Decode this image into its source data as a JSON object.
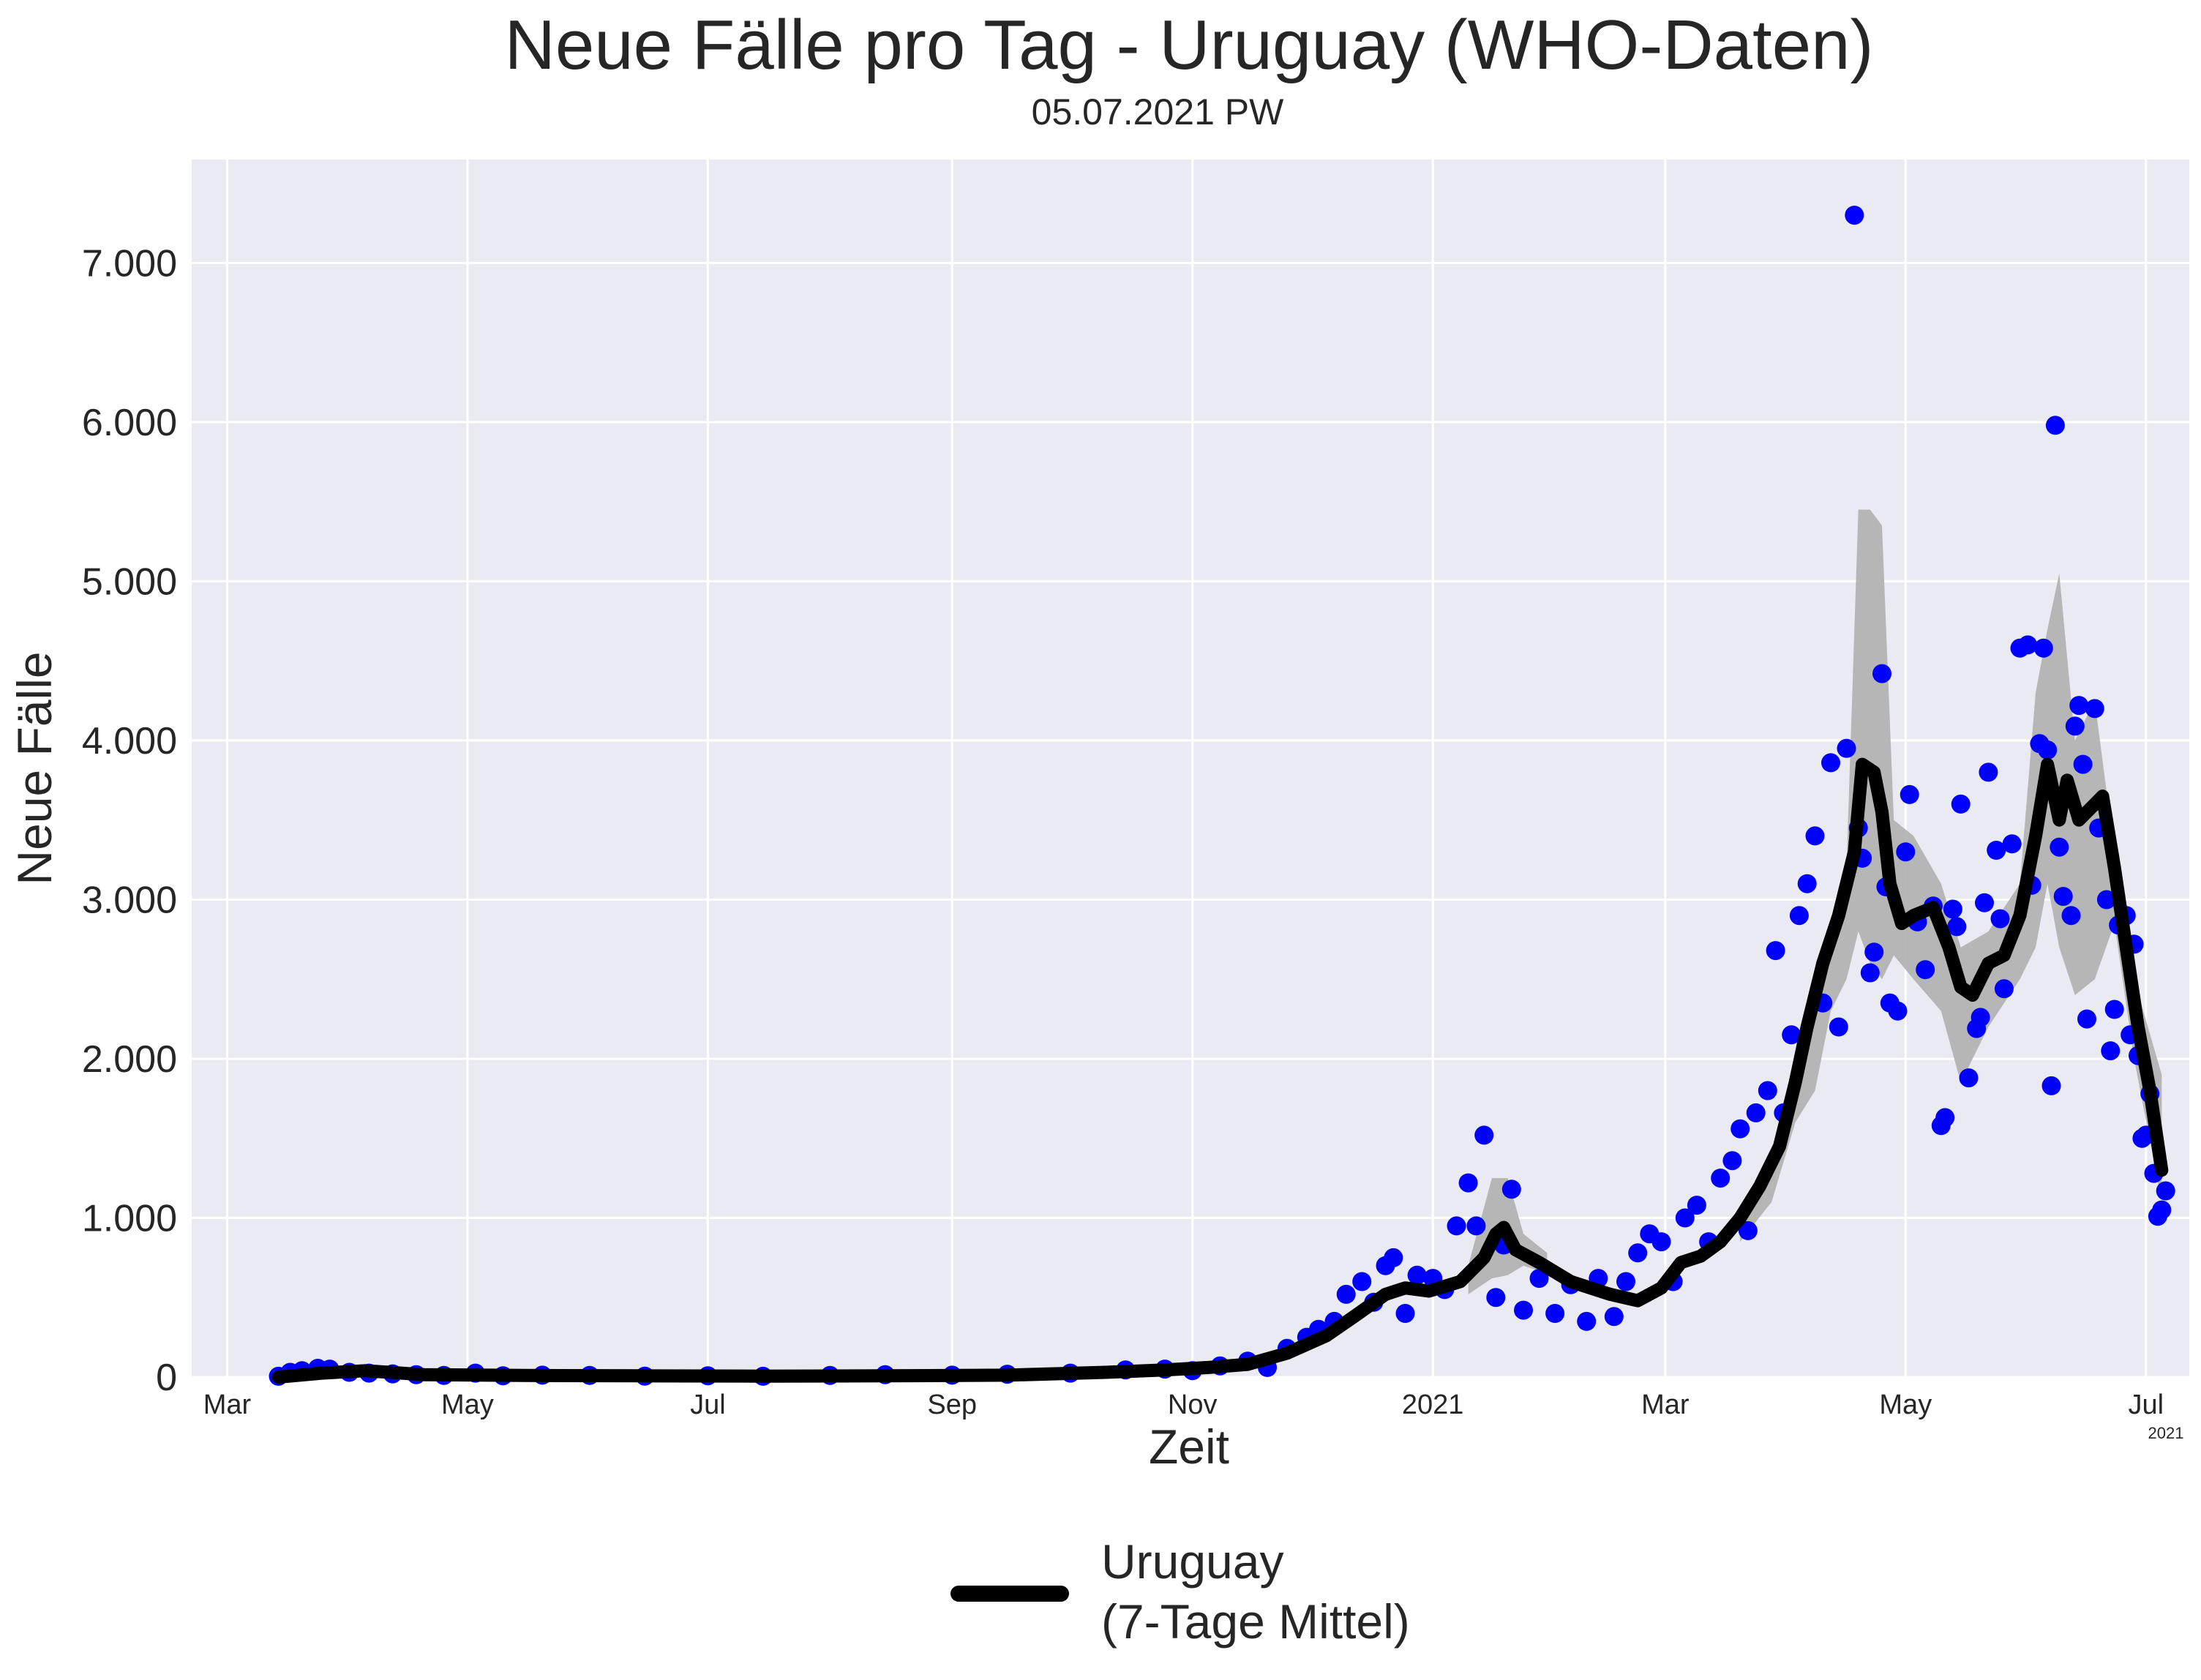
{
  "chart_data": {
    "type": "scatter",
    "title": "Neue Fälle pro Tag - Uruguay (WHO-Daten)",
    "subtitle": "05.07.2021 PW",
    "xlabel": "Zeit",
    "ylabel": "Neue Fälle",
    "x_offset_label": "2021",
    "xlim": [
      "2020-02-21",
      "2021-07-12"
    ],
    "ylim": [
      0,
      7650
    ],
    "grid": true,
    "legend_placement": "bottom-center",
    "y_ticks": [
      {
        "value": 0,
        "label": "0"
      },
      {
        "value": 1000,
        "label": "1.000"
      },
      {
        "value": 2000,
        "label": "2.000"
      },
      {
        "value": 3000,
        "label": "3.000"
      },
      {
        "value": 4000,
        "label": "4.000"
      },
      {
        "value": 5000,
        "label": "5.000"
      },
      {
        "value": 6000,
        "label": "6.000"
      },
      {
        "value": 7000,
        "label": "7.000"
      }
    ],
    "x_ticks": [
      {
        "date": "2020-03-01",
        "label": "Mar"
      },
      {
        "date": "2020-05-01",
        "label": "May"
      },
      {
        "date": "2020-07-01",
        "label": "Jul"
      },
      {
        "date": "2020-09-01",
        "label": "Sep"
      },
      {
        "date": "2020-11-01",
        "label": "Nov"
      },
      {
        "date": "2021-01-01",
        "label": "2021"
      },
      {
        "date": "2021-03-01",
        "label": "Mar"
      },
      {
        "date": "2021-05-01",
        "label": "May"
      },
      {
        "date": "2021-07-01",
        "label": "Jul"
      }
    ],
    "series": [
      {
        "name": "Uruguay\n(7-Tage Mittel)",
        "type": "line",
        "color": "#000000",
        "points": [
          [
            "2020-03-14",
            0
          ],
          [
            "2020-03-25",
            25
          ],
          [
            "2020-04-05",
            40
          ],
          [
            "2020-04-20",
            15
          ],
          [
            "2020-05-15",
            10
          ],
          [
            "2020-06-15",
            8
          ],
          [
            "2020-07-15",
            6
          ],
          [
            "2020-08-15",
            8
          ],
          [
            "2020-09-15",
            12
          ],
          [
            "2020-10-10",
            30
          ],
          [
            "2020-10-25",
            45
          ],
          [
            "2020-11-05",
            60
          ],
          [
            "2020-11-15",
            80
          ],
          [
            "2020-11-25",
            150
          ],
          [
            "2020-12-05",
            260
          ],
          [
            "2020-12-12",
            380
          ],
          [
            "2020-12-20",
            520
          ],
          [
            "2020-12-25",
            560
          ],
          [
            "2020-12-31",
            540
          ],
          [
            "2021-01-08",
            600
          ],
          [
            "2021-01-14",
            750
          ],
          [
            "2021-01-17",
            900
          ],
          [
            "2021-01-19",
            940
          ],
          [
            "2021-01-22",
            800
          ],
          [
            "2021-01-28",
            720
          ],
          [
            "2021-02-05",
            600
          ],
          [
            "2021-02-15",
            520
          ],
          [
            "2021-02-22",
            480
          ],
          [
            "2021-02-28",
            560
          ],
          [
            "2021-03-05",
            720
          ],
          [
            "2021-03-10",
            760
          ],
          [
            "2021-03-15",
            850
          ],
          [
            "2021-03-20",
            1000
          ],
          [
            "2021-03-25",
            1200
          ],
          [
            "2021-03-30",
            1450
          ],
          [
            "2021-04-03",
            1850
          ],
          [
            "2021-04-06",
            2200
          ],
          [
            "2021-04-10",
            2600
          ],
          [
            "2021-04-14",
            2900
          ],
          [
            "2021-04-18",
            3300
          ],
          [
            "2021-04-20",
            3850
          ],
          [
            "2021-04-23",
            3800
          ],
          [
            "2021-04-25",
            3550
          ],
          [
            "2021-04-27",
            3100
          ],
          [
            "2021-04-30",
            2850
          ],
          [
            "2021-05-03",
            2900
          ],
          [
            "2021-05-08",
            2950
          ],
          [
            "2021-05-12",
            2700
          ],
          [
            "2021-05-15",
            2450
          ],
          [
            "2021-05-18",
            2400
          ],
          [
            "2021-05-22",
            2600
          ],
          [
            "2021-05-26",
            2650
          ],
          [
            "2021-05-30",
            2900
          ],
          [
            "2021-06-03",
            3400
          ],
          [
            "2021-06-06",
            3850
          ],
          [
            "2021-06-09",
            3500
          ],
          [
            "2021-06-11",
            3750
          ],
          [
            "2021-06-14",
            3500
          ],
          [
            "2021-06-18",
            3600
          ],
          [
            "2021-06-20",
            3650
          ],
          [
            "2021-06-23",
            3200
          ],
          [
            "2021-06-26",
            2700
          ],
          [
            "2021-06-29",
            2200
          ],
          [
            "2021-07-02",
            1800
          ],
          [
            "2021-07-05",
            1300
          ]
        ]
      },
      {
        "name": "",
        "type": "band",
        "color": "#b3b3b3",
        "upper": [
          [
            "2021-03-20",
            1050
          ],
          [
            "2021-03-28",
            1350
          ],
          [
            "2021-04-03",
            2000
          ],
          [
            "2021-04-08",
            2400
          ],
          [
            "2021-04-12",
            2800
          ],
          [
            "2021-04-16",
            3200
          ],
          [
            "2021-04-19",
            5450
          ],
          [
            "2021-04-22",
            5450
          ],
          [
            "2021-04-25",
            5350
          ],
          [
            "2021-04-28",
            3500
          ],
          [
            "2021-05-03",
            3400
          ],
          [
            "2021-05-10",
            3100
          ],
          [
            "2021-05-15",
            2700
          ],
          [
            "2021-05-22",
            2800
          ],
          [
            "2021-05-30",
            3100
          ],
          [
            "2021-06-03",
            4300
          ],
          [
            "2021-06-06",
            4700
          ],
          [
            "2021-06-09",
            5050
          ],
          [
            "2021-06-13",
            4000
          ],
          [
            "2021-06-18",
            4250
          ],
          [
            "2021-06-23",
            3300
          ],
          [
            "2021-06-28",
            2500
          ],
          [
            "2021-07-05",
            1900
          ]
        ],
        "lower": [
          [
            "2021-07-05",
            1100
          ],
          [
            "2021-06-28",
            2000
          ],
          [
            "2021-06-23",
            2850
          ],
          [
            "2021-06-18",
            2500
          ],
          [
            "2021-06-13",
            2400
          ],
          [
            "2021-06-09",
            2700
          ],
          [
            "2021-06-06",
            3100
          ],
          [
            "2021-06-03",
            2700
          ],
          [
            "2021-05-30",
            2500
          ],
          [
            "2021-05-22",
            2200
          ],
          [
            "2021-05-15",
            1850
          ],
          [
            "2021-05-10",
            2300
          ],
          [
            "2021-05-03",
            2500
          ],
          [
            "2021-04-28",
            2650
          ],
          [
            "2021-04-25",
            2500
          ],
          [
            "2021-04-22",
            2600
          ],
          [
            "2021-04-19",
            2800
          ],
          [
            "2021-04-16",
            2500
          ],
          [
            "2021-04-12",
            2300
          ],
          [
            "2021-04-08",
            1800
          ],
          [
            "2021-04-03",
            1600
          ],
          [
            "2021-03-28",
            1100
          ],
          [
            "2021-03-20",
            850
          ]
        ]
      },
      {
        "name": "",
        "type": "band",
        "color": "#b3b3b3",
        "upper": [
          [
            "2021-01-10",
            700
          ],
          [
            "2021-01-16",
            1250
          ],
          [
            "2021-01-20",
            1250
          ],
          [
            "2021-01-24",
            900
          ],
          [
            "2021-01-30",
            780
          ]
        ],
        "lower": [
          [
            "2021-01-30",
            650
          ],
          [
            "2021-01-24",
            700
          ],
          [
            "2021-01-20",
            640
          ],
          [
            "2021-01-16",
            620
          ],
          [
            "2021-01-10",
            520
          ]
        ]
      },
      {
        "name": "",
        "type": "scatter",
        "color": "#0000ff",
        "points": [
          [
            "2020-03-14",
            5
          ],
          [
            "2020-03-17",
            30
          ],
          [
            "2020-03-20",
            40
          ],
          [
            "2020-03-24",
            55
          ],
          [
            "2020-03-27",
            50
          ],
          [
            "2020-04-01",
            30
          ],
          [
            "2020-04-06",
            25
          ],
          [
            "2020-04-12",
            20
          ],
          [
            "2020-04-18",
            15
          ],
          [
            "2020-04-25",
            10
          ],
          [
            "2020-05-03",
            25
          ],
          [
            "2020-05-10",
            8
          ],
          [
            "2020-05-20",
            12
          ],
          [
            "2020-06-01",
            10
          ],
          [
            "2020-06-15",
            6
          ],
          [
            "2020-07-01",
            8
          ],
          [
            "2020-07-15",
            5
          ],
          [
            "2020-08-01",
            10
          ],
          [
            "2020-08-15",
            15
          ],
          [
            "2020-09-01",
            12
          ],
          [
            "2020-09-15",
            18
          ],
          [
            "2020-10-01",
            25
          ],
          [
            "2020-10-15",
            45
          ],
          [
            "2020-10-25",
            50
          ],
          [
            "2020-11-01",
            40
          ],
          [
            "2020-11-08",
            70
          ],
          [
            "2020-11-15",
            100
          ],
          [
            "2020-11-20",
            60
          ],
          [
            "2020-11-25",
            180
          ],
          [
            "2020-11-30",
            250
          ],
          [
            "2020-12-03",
            300
          ],
          [
            "2020-12-07",
            350
          ],
          [
            "2020-12-10",
            520
          ],
          [
            "2020-12-14",
            600
          ],
          [
            "2020-12-17",
            470
          ],
          [
            "2020-12-20",
            700
          ],
          [
            "2020-12-22",
            750
          ],
          [
            "2020-12-25",
            400
          ],
          [
            "2020-12-28",
            640
          ],
          [
            "2021-01-01",
            620
          ],
          [
            "2021-01-04",
            550
          ],
          [
            "2021-01-07",
            950
          ],
          [
            "2021-01-10",
            1220
          ],
          [
            "2021-01-12",
            950
          ],
          [
            "2021-01-14",
            1520
          ],
          [
            "2021-01-17",
            500
          ],
          [
            "2021-01-19",
            830
          ],
          [
            "2021-01-21",
            1180
          ],
          [
            "2021-01-24",
            420
          ],
          [
            "2021-01-28",
            620
          ],
          [
            "2021-02-01",
            400
          ],
          [
            "2021-02-05",
            580
          ],
          [
            "2021-02-09",
            350
          ],
          [
            "2021-02-12",
            620
          ],
          [
            "2021-02-16",
            380
          ],
          [
            "2021-02-19",
            600
          ],
          [
            "2021-02-22",
            780
          ],
          [
            "2021-02-25",
            900
          ],
          [
            "2021-02-28",
            850
          ],
          [
            "2021-03-03",
            600
          ],
          [
            "2021-03-06",
            1000
          ],
          [
            "2021-03-09",
            1080
          ],
          [
            "2021-03-12",
            850
          ],
          [
            "2021-03-15",
            1250
          ],
          [
            "2021-03-18",
            1360
          ],
          [
            "2021-03-20",
            1560
          ],
          [
            "2021-03-22",
            920
          ],
          [
            "2021-03-24",
            1660
          ],
          [
            "2021-03-27",
            1800
          ],
          [
            "2021-03-29",
            2680
          ],
          [
            "2021-03-31",
            1660
          ],
          [
            "2021-04-02",
            2150
          ],
          [
            "2021-04-04",
            2900
          ],
          [
            "2021-04-06",
            3100
          ],
          [
            "2021-04-08",
            3400
          ],
          [
            "2021-04-10",
            2350
          ],
          [
            "2021-04-12",
            3860
          ],
          [
            "2021-04-14",
            2200
          ],
          [
            "2021-04-16",
            3950
          ],
          [
            "2021-04-18",
            7300
          ],
          [
            "2021-04-19",
            3450
          ],
          [
            "2021-04-20",
            3260
          ],
          [
            "2021-04-22",
            2540
          ],
          [
            "2021-04-23",
            2670
          ],
          [
            "2021-04-25",
            4420
          ],
          [
            "2021-04-26",
            3080
          ],
          [
            "2021-04-27",
            2350
          ],
          [
            "2021-04-29",
            2300
          ],
          [
            "2021-05-01",
            3300
          ],
          [
            "2021-05-02",
            3660
          ],
          [
            "2021-05-04",
            2860
          ],
          [
            "2021-05-06",
            2560
          ],
          [
            "2021-05-08",
            2960
          ],
          [
            "2021-05-10",
            1580
          ],
          [
            "2021-05-11",
            1630
          ],
          [
            "2021-05-13",
            2940
          ],
          [
            "2021-05-14",
            2830
          ],
          [
            "2021-05-15",
            3600
          ],
          [
            "2021-05-17",
            1880
          ],
          [
            "2021-05-19",
            2190
          ],
          [
            "2021-05-20",
            2260
          ],
          [
            "2021-05-21",
            2980
          ],
          [
            "2021-05-22",
            3800
          ],
          [
            "2021-05-24",
            3310
          ],
          [
            "2021-05-25",
            2880
          ],
          [
            "2021-05-26",
            2440
          ],
          [
            "2021-05-28",
            3350
          ],
          [
            "2021-05-30",
            4580
          ],
          [
            "2021-06-01",
            4600
          ],
          [
            "2021-06-02",
            3090
          ],
          [
            "2021-06-04",
            3980
          ],
          [
            "2021-06-05",
            4580
          ],
          [
            "2021-06-06",
            3940
          ],
          [
            "2021-06-07",
            1830
          ],
          [
            "2021-06-08",
            5980
          ],
          [
            "2021-06-09",
            3330
          ],
          [
            "2021-06-10",
            3020
          ],
          [
            "2021-06-12",
            2900
          ],
          [
            "2021-06-13",
            4090
          ],
          [
            "2021-06-14",
            4220
          ],
          [
            "2021-06-15",
            3850
          ],
          [
            "2021-06-16",
            2250
          ],
          [
            "2021-06-18",
            4200
          ],
          [
            "2021-06-19",
            3450
          ],
          [
            "2021-06-21",
            3000
          ],
          [
            "2021-06-22",
            2050
          ],
          [
            "2021-06-23",
            2310
          ],
          [
            "2021-06-24",
            2840
          ],
          [
            "2021-06-26",
            2900
          ],
          [
            "2021-06-27",
            2150
          ],
          [
            "2021-06-28",
            2720
          ],
          [
            "2021-06-29",
            2020
          ],
          [
            "2021-06-30",
            1500
          ],
          [
            "2021-07-01",
            1520
          ],
          [
            "2021-07-02",
            1780
          ],
          [
            "2021-07-03",
            1280
          ],
          [
            "2021-07-04",
            1010
          ],
          [
            "2021-07-05",
            1050
          ],
          [
            "2021-07-06",
            1170
          ]
        ]
      }
    ]
  }
}
